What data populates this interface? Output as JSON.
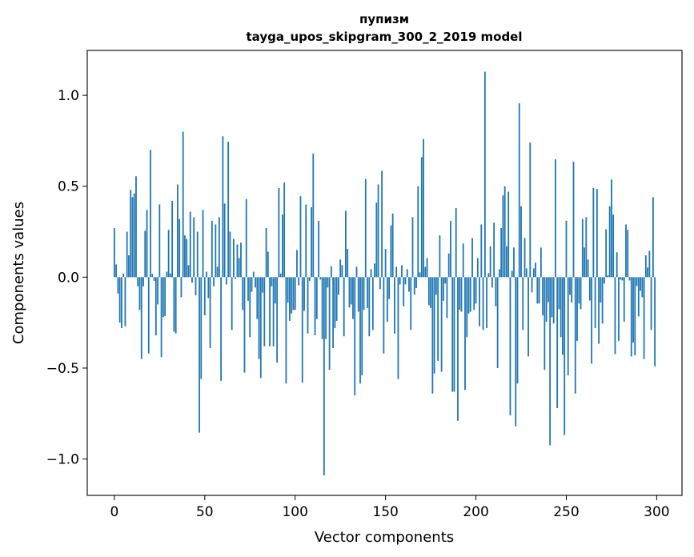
{
  "chart_data": {
    "type": "bar",
    "title": "пупизм",
    "subtitle": "tayga_upos_skipgram_300_2_2019 model",
    "xlabel": "Vector components",
    "ylabel": "Components values",
    "xlim": [
      -15,
      314
    ],
    "ylim": [
      -1.2,
      1.247
    ],
    "xticks": [
      0,
      50,
      100,
      150,
      200,
      250,
      300
    ],
    "xtick_labels": [
      "0",
      "50",
      "100",
      "150",
      "200",
      "250",
      "300"
    ],
    "yticks": [
      -1.0,
      -0.5,
      0.0,
      0.5,
      1.0
    ],
    "ytick_labels": [
      "−1.0",
      "−0.5",
      "0.0",
      "0.5",
      "1.0"
    ],
    "grid": false,
    "color": "#1f77b4",
    "values": [
      0.27,
      0.07,
      -0.09,
      -0.25,
      -0.28,
      0.02,
      -0.27,
      0.25,
      0.12,
      0.48,
      0.44,
      0.46,
      0.555,
      -0.05,
      -0.18,
      -0.45,
      -0.05,
      0.255,
      0.37,
      -0.42,
      0.7,
      0.018,
      -0.02,
      -0.32,
      -0.15,
      0.4,
      -0.44,
      -0.22,
      -0.215,
      0.03,
      0.26,
      0.02,
      0.42,
      -0.3,
      -0.31,
      0.51,
      0.32,
      -0.11,
      0.8,
      0.23,
      0.21,
      0.066,
      0.36,
      -0.03,
      0.33,
      -0.1,
      0.25,
      -0.855,
      -0.56,
      0.37,
      -0.21,
      0.03,
      -0.115,
      -0.39,
      0.31,
      -0.05,
      0.29,
      0.057,
      0.33,
      -0.57,
      0.775,
      0.405,
      -0.04,
      0.745,
      0.25,
      -0.29,
      0.21,
      -0.01,
      0.18,
      0.105,
      0.19,
      -0.18,
      -0.525,
      0.43,
      -0.13,
      -0.33,
      -0.08,
      0.03,
      -0.057,
      -0.23,
      -0.45,
      -0.555,
      -0.085,
      -0.38,
      0.27,
      0.14,
      -0.38,
      -0.05,
      -0.38,
      -0.145,
      -0.47,
      0.49,
      0.02,
      0.345,
      0.52,
      -0.585,
      -0.14,
      -0.24,
      -0.2,
      -0.18,
      -0.18,
      0.15,
      -0.045,
      0.445,
      -0.58,
      -0.185,
      0.4,
      -0.31,
      -0.02,
      0.385,
      0.68,
      -0.32,
      -0.23,
      0.31,
      -0.013,
      -0.34,
      -1.09,
      -0.34,
      -0.057,
      -0.51,
      0.06,
      -0.39,
      -0.28,
      -0.24,
      -0.097,
      0.097,
      0.066,
      -0.325,
      0.365,
      0.155,
      -0.167,
      -0.15,
      -0.23,
      -0.65,
      0.057,
      -0.19,
      -0.585,
      -0.54,
      -0.18,
      0.54,
      -0.17,
      -0.325,
      0.044,
      -0.29,
      0.075,
      0.41,
      0.51,
      -0.066,
      0.585,
      -0.42,
      0.155,
      -0.245,
      -0.12,
      0.285,
      0.35,
      -0.31,
      0.057,
      -0.56,
      -0.04,
      0.066,
      -0.16,
      -0.04,
      0.044,
      -0.08,
      -0.29,
      0.33,
      -0.097,
      -0.06,
      0.5,
      0.026,
      0.66,
      0.76,
      0.057,
      0.105,
      -0.154,
      -0.17,
      -0.64,
      -0.53,
      -0.097,
      -0.46,
      0.23,
      -0.52,
      -0.13,
      -0.035,
      -0.225,
      0.13,
      0.31,
      -0.63,
      -0.63,
      0.38,
      -0.79,
      -0.18,
      -0.19,
      0.185,
      -0.62,
      -0.33,
      -0.2,
      -0.19,
      0.215,
      -0.18,
      -0.145,
      0.105,
      -0.27,
      0.29,
      -0.29,
      1.13,
      -0.28,
      0.022,
      0.17,
      -0.057,
      0.3,
      -0.16,
      -0.5,
      0.044,
      0.27,
      0.45,
      0.5,
      0.17,
      0.47,
      -0.76,
      0.035,
      0.163,
      -0.82,
      -0.585,
      0.956,
      0.39,
      -0.29,
      0.215,
      0.048,
      -0.436,
      0.74,
      -0.084,
      0.048,
      0.08,
      -0.145,
      -0.145,
      0.163,
      -0.21,
      -0.51,
      -0.245,
      -0.137,
      -0.925,
      -0.22,
      -0.255,
      0.648,
      -0.72,
      -0.176,
      -0.33,
      -0.427,
      -0.868,
      0.31,
      -0.54,
      -0.097,
      -0.14,
      0.634,
      -0.64,
      -0.35,
      -0.145,
      -0.176,
      0.32,
      0.163,
      0.33,
      0.097,
      -0.128,
      -0.476,
      0.49,
      -0.28,
      0.485,
      -0.366,
      -0.14,
      -0.255,
      -0.035,
      0.264,
      0.01,
      0.39,
      0.537,
      0.344,
      -0.423,
      0.137,
      -0.35,
      -0.013,
      -0.018,
      -0.245,
      0.29,
      0.26,
      -0.018,
      -0.436,
      -0.36,
      -0.43,
      -0.048,
      -0.216,
      -0.075,
      -0.11,
      -0.45,
      0.12,
      0.053,
      0.145,
      -0.29,
      0.44,
      -0.49
    ]
  }
}
